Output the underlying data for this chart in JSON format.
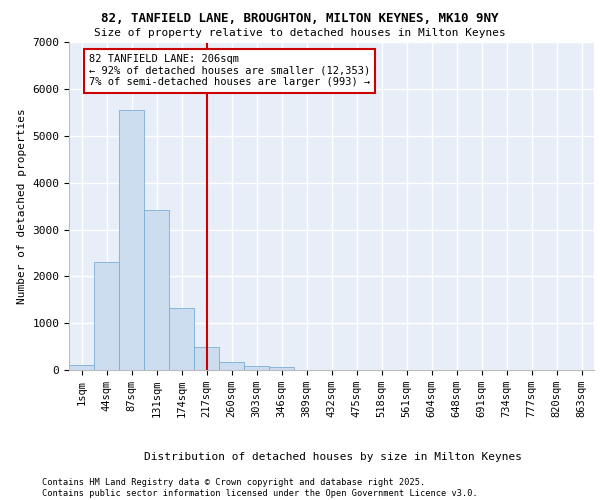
{
  "title_line1": "82, TANFIELD LANE, BROUGHTON, MILTON KEYNES, MK10 9NY",
  "title_line2": "Size of property relative to detached houses in Milton Keynes",
  "xlabel": "Distribution of detached houses by size in Milton Keynes",
  "ylabel": "Number of detached properties",
  "categories": [
    "1sqm",
    "44sqm",
    "87sqm",
    "131sqm",
    "174sqm",
    "217sqm",
    "260sqm",
    "303sqm",
    "346sqm",
    "389sqm",
    "432sqm",
    "475sqm",
    "518sqm",
    "561sqm",
    "604sqm",
    "648sqm",
    "691sqm",
    "734sqm",
    "777sqm",
    "820sqm",
    "863sqm"
  ],
  "values": [
    100,
    2300,
    5550,
    3430,
    1320,
    500,
    175,
    90,
    55,
    10,
    0,
    0,
    0,
    0,
    0,
    0,
    0,
    0,
    0,
    0,
    0
  ],
  "bar_color": "#ccddf0",
  "bar_edge_color": "#7bafd4",
  "vline_color": "#cc0000",
  "annotation_text": "82 TANFIELD LANE: 206sqm\n← 92% of detached houses are smaller (12,353)\n7% of semi-detached houses are larger (993) →",
  "annotation_box_color": "#cc0000",
  "ylim": [
    0,
    7000
  ],
  "yticks": [
    0,
    1000,
    2000,
    3000,
    4000,
    5000,
    6000,
    7000
  ],
  "background_color": "#e8eef8",
  "grid_color": "#ffffff",
  "footer_line1": "Contains HM Land Registry data © Crown copyright and database right 2025.",
  "footer_line2": "Contains public sector information licensed under the Open Government Licence v3.0."
}
